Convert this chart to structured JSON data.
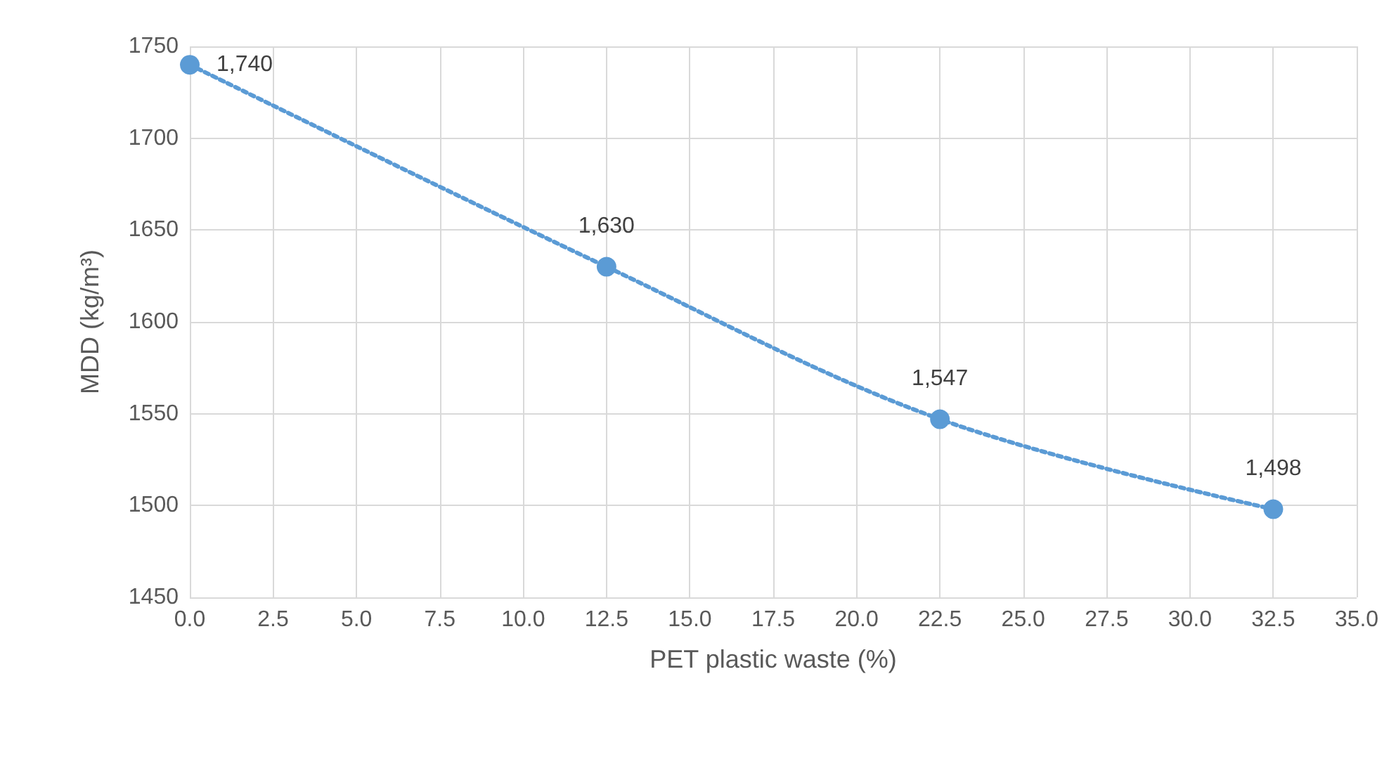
{
  "chart_data": {
    "type": "line",
    "xlabel": "PET plastic waste (%)",
    "ylabel": "MDD (kg/m³)",
    "x": [
      0,
      12.5,
      22.5,
      32.5
    ],
    "series": [
      {
        "color": "#5b9bd5",
        "values": [
          1740,
          1630,
          1547,
          1498
        ],
        "value_labels": [
          "1,740",
          "1,630",
          "1,547",
          "1,498"
        ]
      }
    ],
    "xlim": [
      0,
      35
    ],
    "xticks": [
      {
        "value": 0,
        "label": "0.0"
      },
      2.5,
      {
        "value": 5,
        "label": "5.0"
      },
      7.5,
      {
        "value": 10,
        "label": "10.0"
      },
      12.5,
      {
        "value": 15,
        "label": "15.0"
      },
      17.5,
      {
        "value": 20,
        "label": "20.0"
      },
      22.5,
      {
        "value": 25,
        "label": "25.0"
      },
      27.5,
      {
        "value": 30,
        "label": "30.0"
      },
      32.5,
      {
        "value": 35,
        "label": "35.0"
      }
    ],
    "ylim": [
      1450,
      1750
    ],
    "yticks": [
      1450,
      1500,
      1550,
      1600,
      1650,
      1700,
      1750
    ],
    "grid": true,
    "marker": "circle",
    "line_style": "dotted"
  }
}
